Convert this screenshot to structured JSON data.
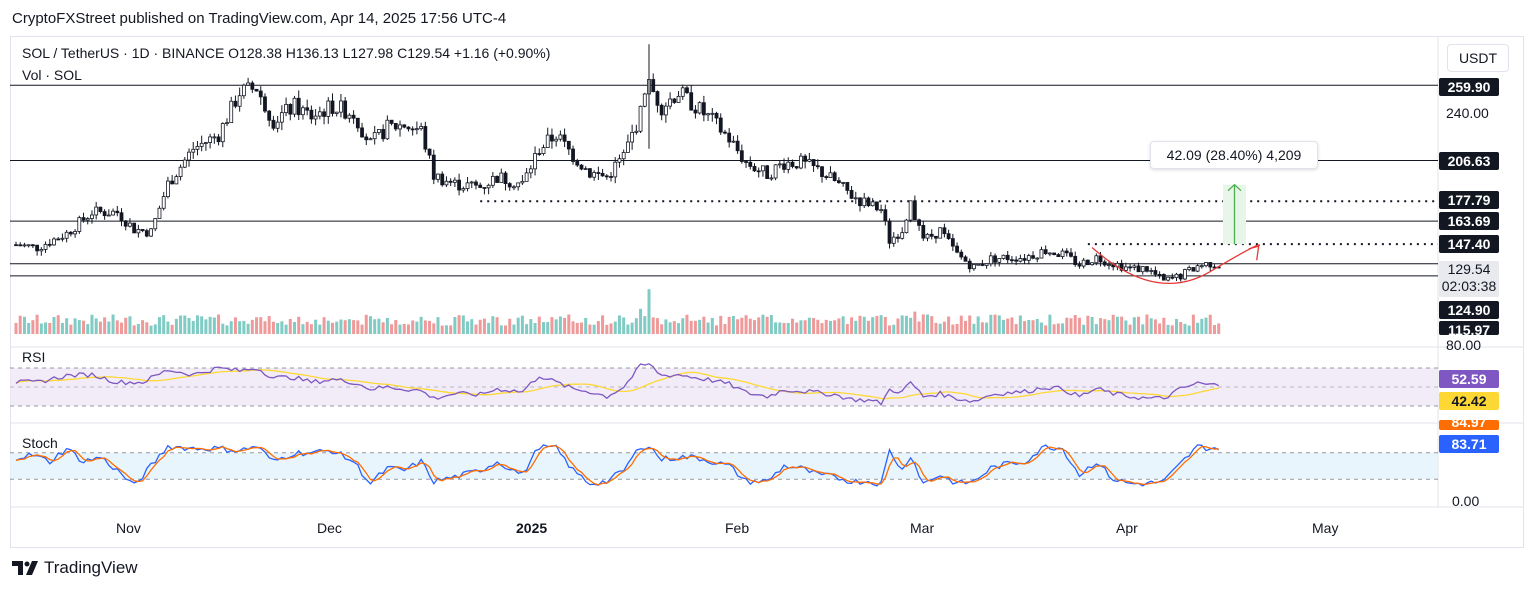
{
  "publisher": "CryptoFXStreet published on TradingView.com, Apr 14, 2025 17:56 UTC-4",
  "header": {
    "line1": "SOL / TetherUS · 1D · BINANCE  O128.38  H136.13  L127.98  C129.54  +1.16 (+0.90%)",
    "line2": "Vol · SOL"
  },
  "currency": "USDT",
  "measure_label": "42.09 (28.40%) 4,209",
  "price_labels": {
    "p259": "259.90",
    "p240": "240.00",
    "p206": "206.63",
    "p177": "177.79",
    "p163": "163.69",
    "p147": "147.40",
    "last": "129.54",
    "countdown": "02:03:38",
    "p124": "124.90",
    "p115": "115.97",
    "rsi_top": "80.00",
    "stoch_bottom": "0.00"
  },
  "rsi": {
    "label": "RSI",
    "value": "52.59",
    "ma": "42.42"
  },
  "stoch": {
    "label": "Stoch",
    "k": "83.71",
    "d": "84.97"
  },
  "x_labels": [
    "Nov",
    "Dec",
    "2025",
    "Feb",
    "Mar",
    "Apr",
    "May"
  ],
  "footer": "TradingView",
  "colors": {
    "up": "#26a69a",
    "down": "#131722",
    "vol_up": "#80cbc4",
    "vol_down": "#ef9a9a",
    "rsi": "#7e57c2",
    "rsi_ma": "#fdd835",
    "stoch_k": "#2962ff",
    "stoch_d": "#ff6d00",
    "arrow": "#4caf50",
    "curve": "#e53935"
  },
  "chart_data": {
    "type": "candlestick",
    "title": "SOL / TetherUS · 1D · BINANCE",
    "xlabel": "",
    "ylabel": "USDT",
    "ylim": [
      112,
      290
    ],
    "horizontal_levels": [
      259.9,
      206.63,
      163.69,
      133.5,
      124.9
    ],
    "dotted_levels": [
      177.79,
      147.4
    ],
    "anchors": [
      [
        0,
        147
      ],
      [
        5,
        145
      ],
      [
        12,
        155
      ],
      [
        18,
        170
      ],
      [
        24,
        170
      ],
      [
        28,
        158
      ],
      [
        32,
        156
      ],
      [
        36,
        190
      ],
      [
        42,
        215
      ],
      [
        48,
        225
      ],
      [
        53,
        255
      ],
      [
        57,
        258
      ],
      [
        61,
        235
      ],
      [
        66,
        245
      ],
      [
        70,
        238
      ],
      [
        75,
        245
      ],
      [
        80,
        240
      ],
      [
        84,
        218
      ],
      [
        88,
        230
      ],
      [
        92,
        232
      ],
      [
        96,
        228
      ],
      [
        99,
        196
      ],
      [
        104,
        190
      ],
      [
        110,
        188
      ],
      [
        114,
        195
      ],
      [
        120,
        190
      ],
      [
        124,
        215
      ],
      [
        128,
        225
      ],
      [
        132,
        210
      ],
      [
        136,
        198
      ],
      [
        140,
        195
      ],
      [
        144,
        210
      ],
      [
        148,
        240
      ],
      [
        150,
        260
      ],
      [
        153,
        245
      ],
      [
        157,
        255
      ],
      [
        161,
        245
      ],
      [
        165,
        235
      ],
      [
        169,
        222
      ],
      [
        173,
        205
      ],
      [
        178,
        197
      ],
      [
        182,
        205
      ],
      [
        186,
        205
      ],
      [
        190,
        200
      ],
      [
        194,
        192
      ],
      [
        198,
        182
      ],
      [
        202,
        175
      ],
      [
        205,
        172
      ],
      [
        207,
        150
      ],
      [
        210,
        158
      ],
      [
        212,
        178
      ],
      [
        215,
        150
      ],
      [
        219,
        157
      ],
      [
        223,
        140
      ],
      [
        227,
        131
      ],
      [
        231,
        137
      ],
      [
        235,
        138
      ],
      [
        239,
        138
      ],
      [
        244,
        143
      ],
      [
        248,
        140
      ],
      [
        252,
        133
      ],
      [
        256,
        138
      ],
      [
        260,
        134
      ],
      [
        264,
        130
      ],
      [
        268,
        130
      ],
      [
        272,
        121
      ],
      [
        276,
        125
      ],
      [
        280,
        132
      ],
      [
        283,
        134
      ],
      [
        285,
        133
      ]
    ],
    "volume_spikes": [
      [
        150,
        3.2
      ],
      [
        148,
        1.8
      ],
      [
        213,
        1.6
      ],
      [
        215,
        1.4
      ],
      [
        211,
        1.3
      ],
      [
        200,
        1.3
      ],
      [
        58,
        1.2
      ]
    ],
    "rsi_anchors": [
      [
        0,
        55
      ],
      [
        5,
        55
      ],
      [
        12,
        62
      ],
      [
        18,
        63
      ],
      [
        24,
        55
      ],
      [
        30,
        55
      ],
      [
        36,
        68
      ],
      [
        42,
        63
      ],
      [
        48,
        70
      ],
      [
        53,
        67
      ],
      [
        57,
        70
      ],
      [
        61,
        60
      ],
      [
        66,
        60
      ],
      [
        70,
        55
      ],
      [
        75,
        58
      ],
      [
        80,
        55
      ],
      [
        84,
        48
      ],
      [
        88,
        50
      ],
      [
        92,
        48
      ],
      [
        96,
        46
      ],
      [
        99,
        38
      ],
      [
        104,
        43
      ],
      [
        110,
        42
      ],
      [
        114,
        48
      ],
      [
        120,
        45
      ],
      [
        124,
        62
      ],
      [
        128,
        55
      ],
      [
        132,
        48
      ],
      [
        136,
        45
      ],
      [
        140,
        40
      ],
      [
        144,
        50
      ],
      [
        148,
        72
      ],
      [
        150,
        74
      ],
      [
        153,
        62
      ],
      [
        157,
        63
      ],
      [
        161,
        60
      ],
      [
        165,
        57
      ],
      [
        169,
        53
      ],
      [
        173,
        44
      ],
      [
        178,
        40
      ],
      [
        182,
        47
      ],
      [
        186,
        46
      ],
      [
        190,
        44
      ],
      [
        194,
        42
      ],
      [
        198,
        37
      ],
      [
        202,
        36
      ],
      [
        205,
        33
      ],
      [
        207,
        47
      ],
      [
        210,
        45
      ],
      [
        212,
        55
      ],
      [
        215,
        40
      ],
      [
        219,
        43
      ],
      [
        223,
        38
      ],
      [
        227,
        35
      ],
      [
        231,
        42
      ],
      [
        235,
        44
      ],
      [
        239,
        45
      ],
      [
        244,
        50
      ],
      [
        248,
        48
      ],
      [
        252,
        40
      ],
      [
        256,
        48
      ],
      [
        260,
        43
      ],
      [
        264,
        40
      ],
      [
        268,
        38
      ],
      [
        272,
        38
      ],
      [
        276,
        48
      ],
      [
        280,
        54
      ],
      [
        283,
        52
      ],
      [
        285,
        52.59
      ]
    ],
    "stoch_anchors": [
      [
        0,
        70
      ],
      [
        4,
        75
      ],
      [
        8,
        60
      ],
      [
        12,
        90
      ],
      [
        16,
        60
      ],
      [
        20,
        70
      ],
      [
        24,
        40
      ],
      [
        28,
        5
      ],
      [
        32,
        50
      ],
      [
        36,
        95
      ],
      [
        42,
        90
      ],
      [
        48,
        90
      ],
      [
        53,
        85
      ],
      [
        57,
        95
      ],
      [
        61,
        60
      ],
      [
        66,
        80
      ],
      [
        70,
        80
      ],
      [
        75,
        85
      ],
      [
        80,
        60
      ],
      [
        84,
        10
      ],
      [
        88,
        45
      ],
      [
        92,
        40
      ],
      [
        96,
        60
      ],
      [
        99,
        15
      ],
      [
        104,
        25
      ],
      [
        110,
        40
      ],
      [
        114,
        60
      ],
      [
        120,
        30
      ],
      [
        124,
        95
      ],
      [
        128,
        90
      ],
      [
        132,
        40
      ],
      [
        136,
        10
      ],
      [
        140,
        15
      ],
      [
        144,
        40
      ],
      [
        148,
        95
      ],
      [
        150,
        95
      ],
      [
        153,
        65
      ],
      [
        157,
        70
      ],
      [
        161,
        70
      ],
      [
        165,
        60
      ],
      [
        169,
        50
      ],
      [
        173,
        15
      ],
      [
        178,
        15
      ],
      [
        182,
        50
      ],
      [
        186,
        45
      ],
      [
        190,
        30
      ],
      [
        194,
        25
      ],
      [
        198,
        15
      ],
      [
        202,
        15
      ],
      [
        205,
        10
      ],
      [
        207,
        85
      ],
      [
        210,
        40
      ],
      [
        212,
        75
      ],
      [
        215,
        10
      ],
      [
        219,
        30
      ],
      [
        223,
        10
      ],
      [
        227,
        15
      ],
      [
        231,
        45
      ],
      [
        235,
        55
      ],
      [
        239,
        60
      ],
      [
        244,
        95
      ],
      [
        248,
        90
      ],
      [
        252,
        30
      ],
      [
        256,
        60
      ],
      [
        260,
        20
      ],
      [
        264,
        10
      ],
      [
        268,
        10
      ],
      [
        272,
        15
      ],
      [
        276,
        55
      ],
      [
        280,
        95
      ],
      [
        283,
        90
      ],
      [
        285,
        92
      ]
    ]
  }
}
